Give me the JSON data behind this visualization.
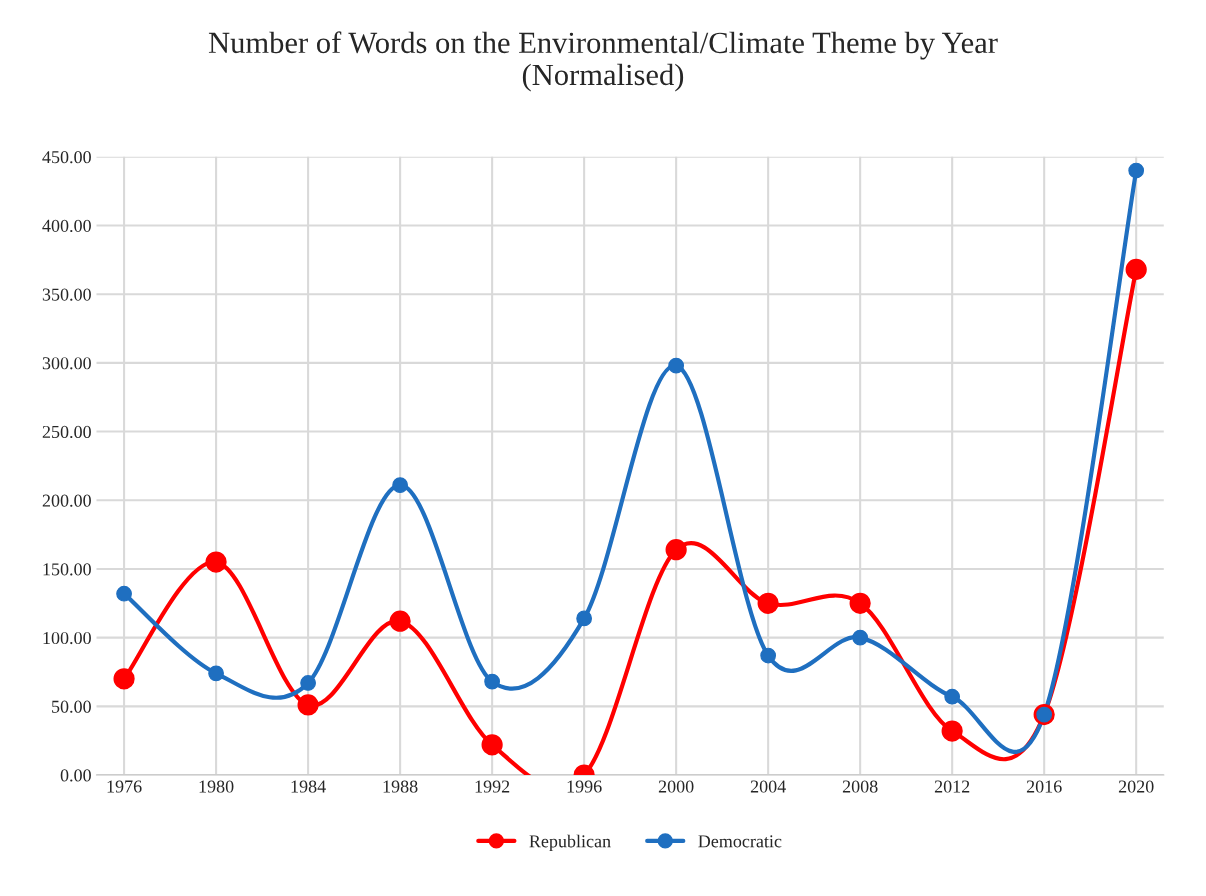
{
  "chart_data": {
    "type": "line",
    "title": "Number of Words on the Environmental/Climate Theme by Year\n(Normalised)",
    "categories": [
      "1976",
      "1980",
      "1984",
      "1988",
      "1992",
      "1996",
      "2000",
      "2004",
      "2008",
      "2012",
      "2016",
      "2020"
    ],
    "series": [
      {
        "name": "Republican",
        "color": "#ff0000",
        "values": [
          70,
          155,
          51,
          112,
          22,
          0,
          164,
          125,
          125,
          32,
          44,
          368
        ]
      },
      {
        "name": "Democratic",
        "color": "#1f6fc0",
        "values": [
          132,
          74,
          67,
          211,
          68,
          114,
          298,
          87,
          100,
          57,
          44,
          440
        ]
      }
    ],
    "ylim": [
      0,
      450
    ],
    "yticks": [
      {
        "value": 0,
        "label": "0.00"
      },
      {
        "value": 50,
        "label": "50.00"
      },
      {
        "value": 100,
        "label": "100.00"
      },
      {
        "value": 150,
        "label": "150.00"
      },
      {
        "value": 200,
        "label": "200.00"
      },
      {
        "value": 250,
        "label": "250.00"
      },
      {
        "value": 300,
        "label": "300.00"
      },
      {
        "value": 350,
        "label": "350.00"
      },
      {
        "value": 400,
        "label": "400.00"
      },
      {
        "value": 450,
        "label": "450.00"
      }
    ],
    "grid": true,
    "legend": "bottom",
    "marker": "circle",
    "line_style": "solid"
  }
}
